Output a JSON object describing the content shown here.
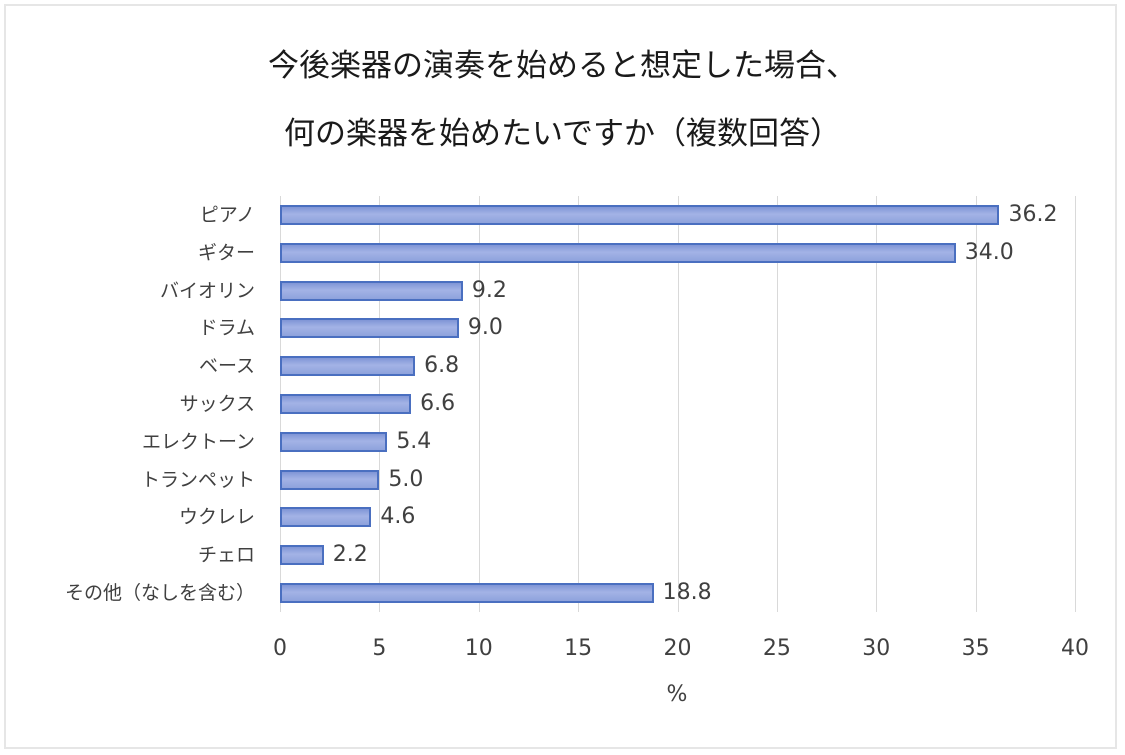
{
  "chart_data": {
    "type": "bar",
    "orientation": "horizontal",
    "title": "今後楽器の演奏を始めると想定した場合、何の楽器を始めたいですか（複数回答）",
    "title_lines": [
      "今後楽器の演奏を始めると想定した場合、",
      "何の楽器を始めたいですか（複数回答）"
    ],
    "categories": [
      "ピアノ",
      "ギター",
      "バイオリン",
      "ドラム",
      "ベース",
      "サックス",
      "エレクトーン",
      "トランペット",
      "ウクレレ",
      "チェロ",
      "その他（なしを含む）"
    ],
    "values": [
      36.2,
      34.0,
      9.2,
      9.0,
      6.8,
      6.6,
      5.4,
      5.0,
      4.6,
      2.2,
      18.8
    ],
    "value_labels": [
      "36.2",
      "34.0",
      "9.2",
      "9.0",
      "6.8",
      "6.6",
      "5.4",
      "5.0",
      "4.6",
      "2.2",
      "18.8"
    ],
    "xlabel": "%",
    "ylabel": "",
    "xlim": [
      0,
      40
    ],
    "xticks": [
      "0",
      "5",
      "10",
      "15",
      "20",
      "25",
      "30",
      "35",
      "40"
    ],
    "grid": true,
    "legend": null,
    "colors": {
      "bar_fill": "#8fa3dc",
      "bar_border": "#4a6fc0",
      "grid": "#d9d9d9",
      "text": "#404040"
    }
  }
}
